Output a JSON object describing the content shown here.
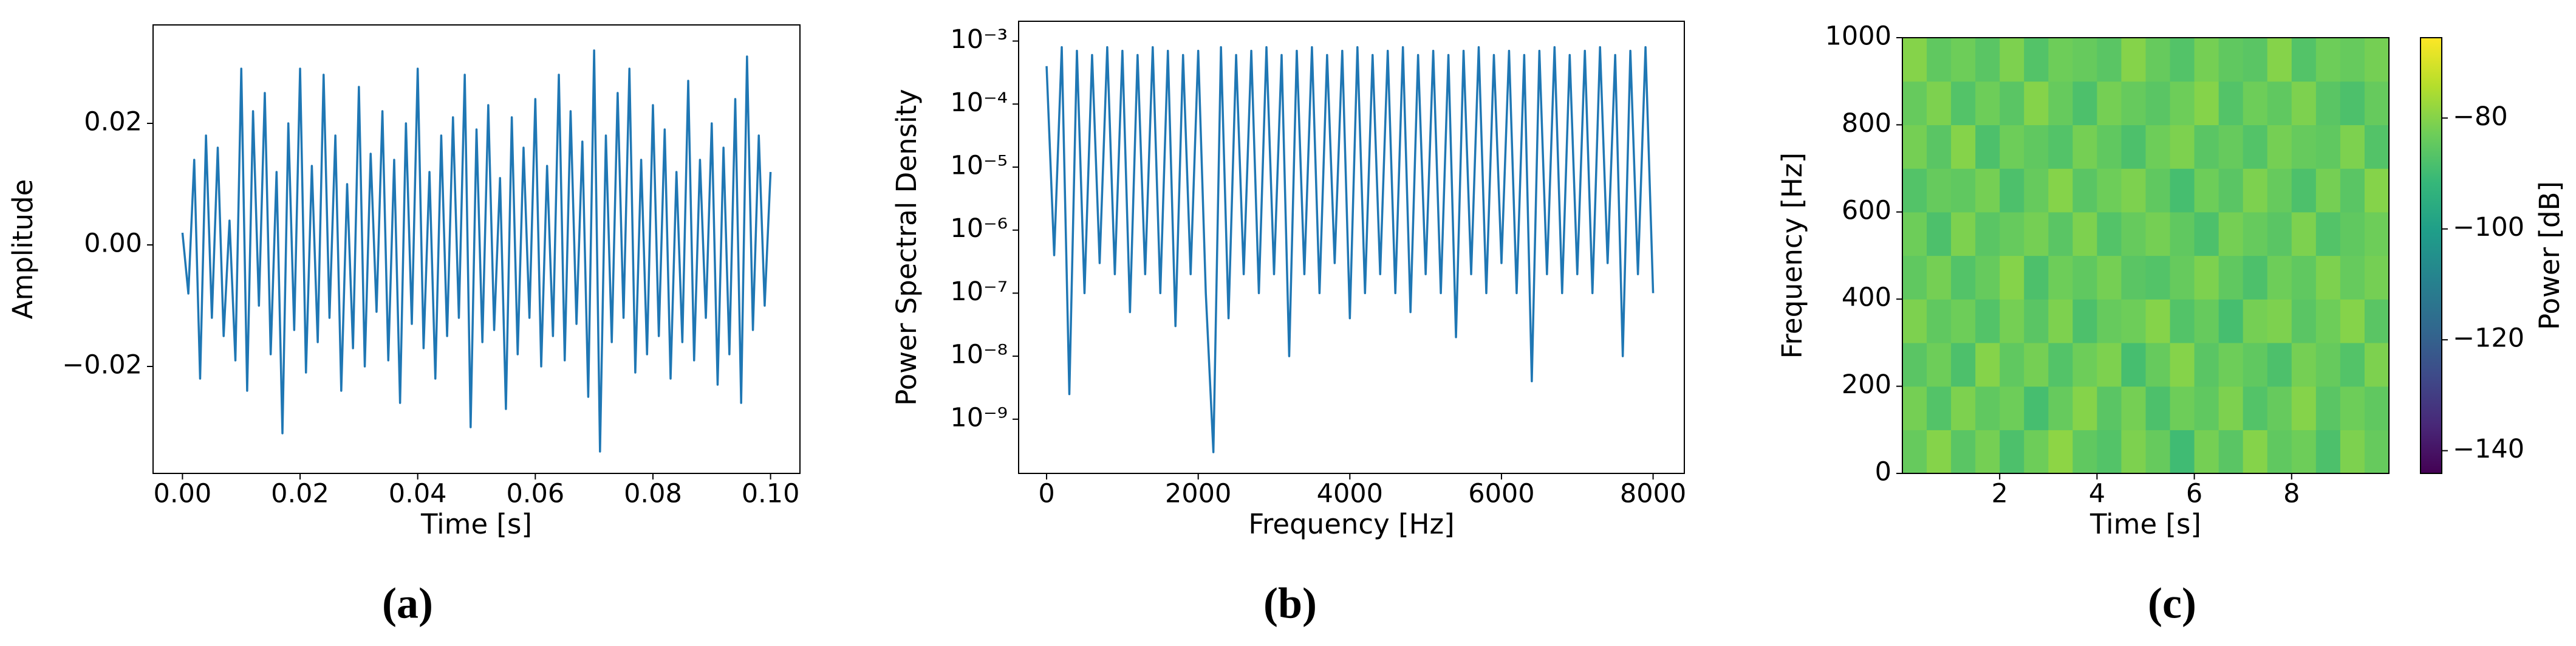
{
  "chart_data": [
    {
      "type": "line",
      "caption": "(a)",
      "xlabel": "Time [s]",
      "ylabel": "Amplitude",
      "color": "#1f77b4",
      "x": [
        0,
        0.001,
        0.002,
        0.003,
        0.004,
        0.005,
        0.006,
        0.007,
        0.008,
        0.009,
        0.01,
        0.011,
        0.012,
        0.013,
        0.014,
        0.015,
        0.016,
        0.017,
        0.018,
        0.019,
        0.02,
        0.021,
        0.022,
        0.023,
        0.024,
        0.025,
        0.026,
        0.027,
        0.028,
        0.029,
        0.03,
        0.031,
        0.032,
        0.033,
        0.034,
        0.035,
        0.036,
        0.037,
        0.038,
        0.039,
        0.04,
        0.041,
        0.042,
        0.043,
        0.044,
        0.045,
        0.046,
        0.047,
        0.048,
        0.049,
        0.05,
        0.051,
        0.052,
        0.053,
        0.054,
        0.055,
        0.056,
        0.057,
        0.058,
        0.059,
        0.06,
        0.061,
        0.062,
        0.063,
        0.064,
        0.065,
        0.066,
        0.067,
        0.068,
        0.069,
        0.07,
        0.071,
        0.072,
        0.073,
        0.074,
        0.075,
        0.076,
        0.077,
        0.078,
        0.079,
        0.08,
        0.081,
        0.082,
        0.083,
        0.084,
        0.085,
        0.086,
        0.087,
        0.088,
        0.089,
        0.09,
        0.091,
        0.092,
        0.093,
        0.094,
        0.095,
        0.096,
        0.097,
        0.098,
        0.099,
        0.1
      ],
      "values": [
        0.002,
        -0.008,
        0.014,
        -0.022,
        0.018,
        -0.012,
        0.016,
        -0.015,
        0.004,
        -0.019,
        0.029,
        -0.024,
        0.022,
        -0.01,
        0.025,
        -0.018,
        0.012,
        -0.031,
        0.02,
        -0.014,
        0.029,
        -0.021,
        0.013,
        -0.016,
        0.028,
        -0.012,
        0.018,
        -0.024,
        0.01,
        -0.017,
        0.026,
        -0.02,
        0.015,
        -0.011,
        0.022,
        -0.019,
        0.014,
        -0.026,
        0.02,
        -0.013,
        0.029,
        -0.017,
        0.012,
        -0.022,
        0.018,
        -0.015,
        0.021,
        -0.012,
        0.028,
        -0.03,
        0.019,
        -0.016,
        0.023,
        -0.014,
        0.011,
        -0.027,
        0.021,
        -0.018,
        0.016,
        -0.012,
        0.024,
        -0.02,
        0.013,
        -0.015,
        0.028,
        -0.019,
        0.022,
        -0.013,
        0.017,
        -0.025,
        0.032,
        -0.034,
        0.018,
        -0.016,
        0.025,
        -0.012,
        0.029,
        -0.021,
        0.014,
        -0.018,
        0.023,
        -0.015,
        0.019,
        -0.022,
        0.012,
        -0.016,
        0.027,
        -0.019,
        0.014,
        -0.012,
        0.02,
        -0.023,
        0.016,
        -0.018,
        0.024,
        -0.026,
        0.031,
        -0.014,
        0.018,
        -0.01,
        0.012
      ],
      "xlim": [
        -0.005,
        0.105
      ],
      "ylim": [
        -0.0376,
        0.0362
      ],
      "xticks": [
        {
          "value": 0,
          "label": "0.00"
        },
        {
          "value": 0.02,
          "label": "0.02"
        },
        {
          "value": 0.04,
          "label": "0.04"
        },
        {
          "value": 0.06,
          "label": "0.06"
        },
        {
          "value": 0.08,
          "label": "0.08"
        },
        {
          "value": 0.1,
          "label": "0.10"
        }
      ],
      "yticks": [
        {
          "value": -0.02,
          "label": "−0.02"
        },
        {
          "value": 0,
          "label": "0.00"
        },
        {
          "value": 0.02,
          "label": "0.02"
        }
      ]
    },
    {
      "type": "line",
      "caption": "(b)",
      "xlabel": "Frequency [Hz]",
      "ylabel": "Power Spectral Density",
      "color": "#1f77b4",
      "yscale": "log",
      "x": [
        0,
        100,
        200,
        300,
        400,
        500,
        600,
        700,
        800,
        900,
        1000,
        1100,
        1200,
        1300,
        1400,
        1500,
        1600,
        1700,
        1800,
        1900,
        2000,
        2100,
        2200,
        2300,
        2400,
        2500,
        2600,
        2700,
        2800,
        2900,
        3000,
        3100,
        3200,
        3300,
        3400,
        3500,
        3600,
        3700,
        3800,
        3900,
        4000,
        4100,
        4200,
        4300,
        4400,
        4500,
        4600,
        4700,
        4800,
        4900,
        5000,
        5100,
        5200,
        5300,
        5400,
        5500,
        5600,
        5700,
        5800,
        5900,
        6000,
        6100,
        6200,
        6300,
        6400,
        6500,
        6600,
        6700,
        6800,
        6900,
        7000,
        7100,
        7200,
        7300,
        7400,
        7500,
        7600,
        7700,
        7800,
        7900,
        8000
      ],
      "values": [
        0.0004,
        4e-07,
        0.0008,
        2.5e-09,
        0.0007,
        1e-07,
        0.0006,
        3e-07,
        0.0008,
        2e-07,
        0.0007,
        5e-08,
        0.0006,
        2e-07,
        0.0008,
        1e-07,
        0.0007,
        3e-08,
        0.0006,
        2e-07,
        0.0007,
        1e-07,
        3e-10,
        0.0008,
        4e-08,
        0.0006,
        2e-07,
        0.0007,
        1e-07,
        0.0008,
        2e-07,
        0.0006,
        1e-08,
        0.0007,
        2e-07,
        0.0008,
        1e-07,
        0.0006,
        3e-07,
        0.0007,
        4e-08,
        0.0008,
        1e-07,
        0.0006,
        2e-07,
        0.0007,
        1e-07,
        0.0008,
        5e-08,
        0.0006,
        2e-07,
        0.0007,
        1e-07,
        0.0006,
        2e-08,
        0.0007,
        2e-07,
        0.0008,
        1e-07,
        0.0006,
        3e-07,
        0.0007,
        1e-07,
        0.0006,
        4e-09,
        0.0007,
        2e-07,
        0.0008,
        1e-07,
        0.0006,
        2e-07,
        0.0007,
        1e-07,
        0.0008,
        3e-07,
        0.0006,
        1e-08,
        0.0007,
        2e-07,
        0.0008,
        1e-07
      ],
      "xlim": [
        -369,
        8412
      ],
      "ylim": [
        1.38e-10,
        0.00206
      ],
      "xticks": [
        0,
        2000,
        4000,
        6000,
        8000
      ],
      "yticks": [
        {
          "value": 1e-09,
          "label": "10⁻⁹"
        },
        {
          "value": 1e-08,
          "label": "10⁻⁸"
        },
        {
          "value": 1e-07,
          "label": "10⁻⁷"
        },
        {
          "value": 1e-06,
          "label": "10⁻⁶"
        },
        {
          "value": 1e-05,
          "label": "10⁻⁵"
        },
        {
          "value": 0.0001,
          "label": "10⁻⁴"
        },
        {
          "value": 0.001,
          "label": "10⁻³"
        }
      ]
    },
    {
      "type": "heatmap",
      "caption": "(c)",
      "xlabel": "Time [s]",
      "ylabel": "Frequency [Hz]",
      "colorbar_label": "Power [dB]",
      "colormap": "viridis",
      "xlim": [
        0,
        10
      ],
      "ylim": [
        0,
        1000
      ],
      "xticks": [
        2,
        4,
        6,
        8
      ],
      "yticks": [
        0,
        200,
        400,
        600,
        800,
        1000
      ],
      "clim": [
        -144.1,
        -65.5
      ],
      "cticks": [
        {
          "value": -140,
          "label": "−140"
        },
        {
          "value": -120,
          "label": "−120"
        },
        {
          "value": -100,
          "label": "−100"
        },
        {
          "value": -80,
          "label": "−80"
        }
      ],
      "z": [
        [
          -84,
          -80,
          -86,
          -82,
          -88,
          -83,
          -79,
          -85,
          -87,
          -81,
          -84,
          -90,
          -82,
          -86,
          -80,
          -85,
          -83,
          -88,
          -81,
          -84
        ],
        [
          -82,
          -87,
          -81,
          -85,
          -83,
          -89,
          -84,
          -80,
          -86,
          -82,
          -88,
          -83,
          -85,
          -81,
          -87,
          -84,
          -80,
          -86,
          -83,
          -85
        ],
        [
          -86,
          -83,
          -88,
          -80,
          -85,
          -82,
          -87,
          -83,
          -81,
          -89,
          -84,
          -80,
          -86,
          -83,
          -85,
          -88,
          -82,
          -84,
          -87,
          -81
        ],
        [
          -81,
          -85,
          -83,
          -87,
          -82,
          -86,
          -81,
          -88,
          -84,
          -83,
          -80,
          -87,
          -84,
          -89,
          -82,
          -81,
          -86,
          -83,
          -80,
          -86
        ],
        [
          -85,
          -82,
          -87,
          -84,
          -80,
          -88,
          -83,
          -85,
          -82,
          -86,
          -87,
          -84,
          -81,
          -85,
          -88,
          -83,
          -85,
          -81,
          -84,
          -82
        ],
        [
          -83,
          -88,
          -81,
          -86,
          -84,
          -82,
          -86,
          -81,
          -87,
          -84,
          -82,
          -85,
          -88,
          -82,
          -84,
          -86,
          -81,
          -87,
          -85,
          -83
        ],
        [
          -87,
          -84,
          -85,
          -82,
          -88,
          -84,
          -80,
          -86,
          -83,
          -81,
          -85,
          -89,
          -83,
          -86,
          -81,
          -84,
          -88,
          -82,
          -86,
          -80
        ],
        [
          -82,
          -86,
          -80,
          -88,
          -83,
          -85,
          -87,
          -82,
          -85,
          -88,
          -83,
          -81,
          -86,
          -84,
          -87,
          -82,
          -84,
          -85,
          -81,
          -87
        ],
        [
          -84,
          -81,
          -87,
          -83,
          -86,
          -80,
          -84,
          -88,
          -82,
          -84,
          -86,
          -83,
          -80,
          -87,
          -83,
          -85,
          -81,
          -86,
          -88,
          -84
        ],
        [
          -80,
          -85,
          -83,
          -86,
          -81,
          -87,
          -83,
          -84,
          -86,
          -80,
          -84,
          -87,
          -82,
          -85,
          -86,
          -80,
          -87,
          -83,
          -84,
          -82
        ]
      ]
    }
  ]
}
